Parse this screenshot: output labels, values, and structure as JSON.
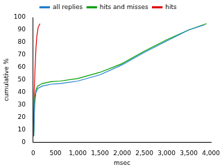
{
  "chart_data": {
    "type": "line",
    "x_label": "msec",
    "y_label": "cumulative %",
    "series": [
      {
        "name": "all replies",
        "color": "#2080d0",
        "x": [
          10,
          30,
          60,
          100,
          200,
          400,
          600,
          1000,
          1500,
          2000,
          2500,
          3000,
          3500,
          3850
        ],
        "values": [
          5,
          30,
          40,
          43,
          45,
          46.5,
          47,
          49,
          54,
          62,
          72,
          81,
          90,
          94
        ]
      },
      {
        "name": "hits and misses",
        "color": "#00a000",
        "x": [
          10,
          30,
          60,
          100,
          200,
          400,
          600,
          1000,
          1500,
          2000,
          2500,
          3000,
          3500,
          3900
        ],
        "values": [
          5,
          35,
          42,
          45,
          47,
          48.5,
          49,
          51,
          56,
          63,
          73,
          82,
          90,
          95
        ]
      },
      {
        "name": "hits",
        "color": "#e00000",
        "x": [
          5,
          20,
          40,
          60,
          80,
          110,
          150
        ],
        "values": [
          5,
          40,
          60,
          75,
          85,
          92,
          95
        ]
      }
    ],
    "xlim": [
      0,
      4000
    ],
    "xticks": [
      0,
      500,
      1000,
      1500,
      2000,
      2500,
      3000,
      3500,
      4000
    ],
    "ylim": [
      0,
      100
    ],
    "yticks": [
      0,
      10,
      20,
      30,
      40,
      50,
      60,
      70,
      80,
      90,
      100
    ],
    "grid": false,
    "legend": "top"
  }
}
